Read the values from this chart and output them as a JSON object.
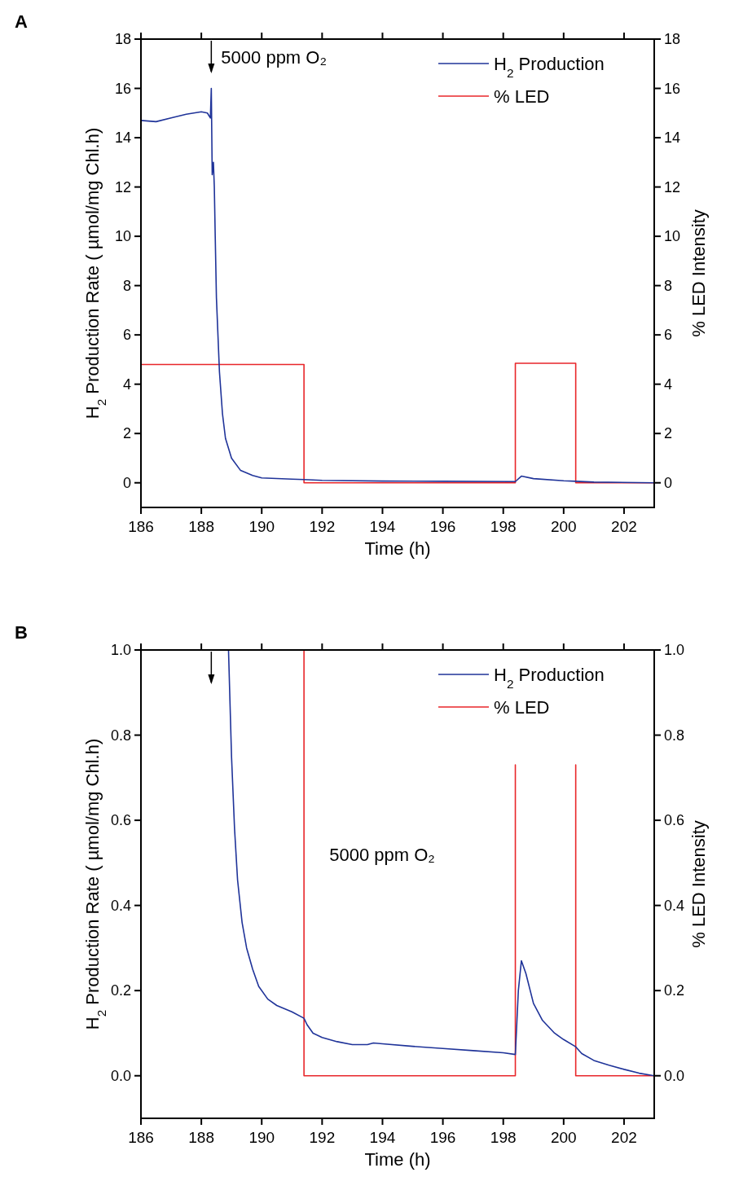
{
  "chart_data": [
    {
      "type": "line",
      "title": "A",
      "xlabel": "Time (h)",
      "ylabel": "H$_{2}$ Production Rate ( µmol/mg Chl.h)",
      "y2label": "% LED Intensity",
      "xlim": [
        186,
        203
      ],
      "xticks": [
        186,
        188,
        190,
        192,
        194,
        196,
        198,
        200,
        202
      ],
      "ylim": [
        -1,
        18
      ],
      "yticks": [
        0,
        2,
        4,
        6,
        8,
        10,
        12,
        14,
        16,
        18
      ],
      "y2lim": [
        -1,
        18
      ],
      "y2ticks": [
        0,
        2,
        4,
        6,
        8,
        10,
        12,
        14,
        16,
        18
      ],
      "legend": "top right",
      "grid": false,
      "annotations": [
        "5000 ppm O₂"
      ],
      "series": [
        {
          "name": "H$_{2}$ Production",
          "color": "#1f3399",
          "x": [
            186,
            186.5,
            187,
            187.5,
            188,
            188.2,
            188.3,
            188.33,
            188.36,
            188.4,
            188.43,
            188.46,
            188.5,
            188.6,
            188.7,
            188.8,
            189,
            189.3,
            189.7,
            190,
            191,
            191.4,
            192,
            194,
            196,
            198.4,
            198.6,
            199,
            200,
            200.4,
            201,
            203
          ],
          "values": [
            14.7,
            14.65,
            14.8,
            14.95,
            15.05,
            15.0,
            14.8,
            16.0,
            12.5,
            13.0,
            12.0,
            10.0,
            7.5,
            4.5,
            2.8,
            1.8,
            1.0,
            0.5,
            0.3,
            0.2,
            0.15,
            0.13,
            0.1,
            0.07,
            0.06,
            0.05,
            0.27,
            0.17,
            0.08,
            0.06,
            0.03,
            0.0
          ]
        },
        {
          "name": "% LED",
          "color": "#e8262a",
          "axis": "y2",
          "x": [
            186,
            191.4,
            191.4,
            198.4,
            198.4,
            200.4,
            200.4,
            203
          ],
          "values": [
            4.8,
            4.8,
            0,
            0,
            4.85,
            4.85,
            0,
            0
          ]
        }
      ]
    },
    {
      "type": "line",
      "title": "B",
      "xlabel": "Time (h)",
      "ylabel": "H$_{2}$ Production Rate ( µmol/mg Chl.h)",
      "y2label": "% LED Intensity",
      "xlim": [
        186,
        203
      ],
      "xticks": [
        186,
        188,
        190,
        192,
        194,
        196,
        198,
        200,
        202
      ],
      "ylim": [
        -0.1,
        1.0
      ],
      "yticks": [
        {
          "value": 0,
          "label": "0.0"
        },
        0.2,
        0.4,
        0.6,
        0.8,
        {
          "value": 1,
          "label": "1.0"
        }
      ],
      "y2lim": [
        -0.1,
        1.0
      ],
      "y2ticks": [
        {
          "value": 0,
          "label": "0.0"
        },
        0.2,
        0.4,
        0.6,
        0.8,
        {
          "value": 1,
          "label": "1.0"
        }
      ],
      "legend": "top right",
      "grid": false,
      "annotations": [
        "5000 ppm O₂"
      ],
      "series": [
        {
          "name": "H$_{2}$ Production",
          "color": "#1f3399",
          "x": [
            188.9,
            189,
            189.1,
            189.2,
            189.35,
            189.5,
            189.7,
            189.9,
            190.2,
            190.5,
            191,
            191.4,
            191.5,
            191.7,
            192,
            192.5,
            193,
            193.5,
            193.7,
            194,
            195,
            196,
            197,
            198,
            198.4,
            198.5,
            198.6,
            198.75,
            199,
            199.3,
            199.7,
            200,
            200.4,
            200.6,
            201,
            201.5,
            202,
            202.5,
            203
          ],
          "values": [
            1.0,
            0.75,
            0.58,
            0.46,
            0.36,
            0.3,
            0.25,
            0.21,
            0.18,
            0.165,
            0.15,
            0.135,
            0.12,
            0.1,
            0.09,
            0.08,
            0.073,
            0.073,
            0.077,
            0.075,
            0.069,
            0.064,
            0.059,
            0.054,
            0.05,
            0.2,
            0.27,
            0.24,
            0.17,
            0.13,
            0.1,
            0.085,
            0.068,
            0.052,
            0.036,
            0.025,
            0.015,
            0.006,
            0
          ]
        },
        {
          "name": "% LED",
          "color": "#e8262a",
          "axis": "y2",
          "x": [
            191.4,
            191.4,
            198.4,
            198.4
          ],
          "values": [
            1.0,
            0,
            0,
            0.73
          ]
        },
        {
          "color": "#e8262a",
          "axis": "y2",
          "x": [
            200.4,
            200.4,
            203
          ],
          "values": [
            0.73,
            0,
            0
          ]
        }
      ]
    }
  ]
}
